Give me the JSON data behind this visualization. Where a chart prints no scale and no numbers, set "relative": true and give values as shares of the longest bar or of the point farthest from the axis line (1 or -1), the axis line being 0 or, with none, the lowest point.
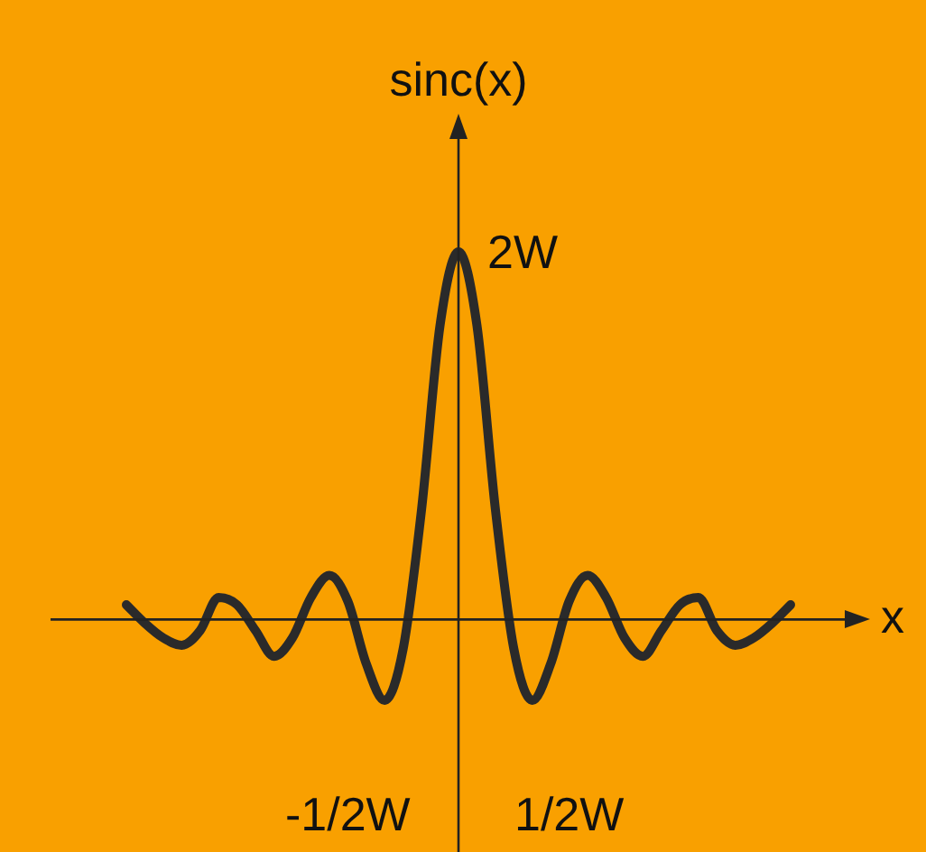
{
  "chart_data": {
    "type": "line",
    "relative": true,
    "xlabel": "x",
    "ylabel": "sinc(x)",
    "categories": [
      null,
      null,
      null,
      null,
      null,
      null,
      null,
      null,
      null,
      null,
      null,
      null,
      "-1/2W",
      null,
      null,
      null,
      null,
      null,
      null,
      null,
      null,
      null,
      null,
      null,
      "1/2W",
      null,
      null,
      null,
      null,
      null,
      null,
      null,
      null,
      null,
      null,
      null,
      null
    ],
    "series": [
      {
        "color": "#2a2a2a",
        "values": [
          0.04,
          -0.01,
          -0.05,
          -0.07,
          -0.03,
          0.06,
          0.04,
          -0.03,
          -0.1,
          -0.05,
          0.06,
          0.12,
          0.05,
          -0.12,
          -0.22,
          -0.08,
          0.3,
          0.8,
          1,
          0.8,
          0.3,
          -0.08,
          -0.22,
          -0.12,
          0.05,
          0.12,
          0.06,
          -0.05,
          -0.1,
          -0.03,
          0.04,
          0.06,
          -0.03,
          -0.07,
          -0.05,
          -0.01,
          0.04
        ]
      }
    ],
    "annotations": [
      "2W"
    ],
    "legend": false,
    "marker": "none",
    "line_style": "solid"
  }
}
